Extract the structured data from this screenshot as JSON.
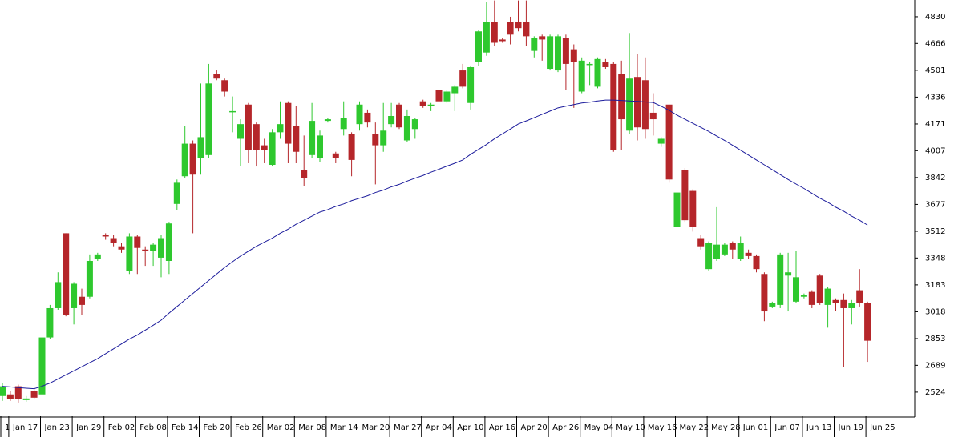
{
  "chart_data": {
    "type": "candlestick",
    "categories": [
      "1",
      "Jan 17",
      null,
      null,
      null,
      "Jan 23",
      null,
      null,
      null,
      "Jan 29",
      null,
      null,
      null,
      "Feb 02",
      null,
      null,
      null,
      "Feb 08",
      null,
      null,
      null,
      "Feb 14",
      null,
      null,
      null,
      "Feb 20",
      null,
      null,
      null,
      "Feb 26",
      null,
      null,
      null,
      "Mar 02",
      null,
      null,
      null,
      "Mar 08",
      null,
      null,
      null,
      "Mar 14",
      null,
      null,
      null,
      "Mar 20",
      null,
      null,
      null,
      "Mar 27",
      null,
      null,
      null,
      "Apr 04",
      null,
      null,
      null,
      "Apr 10",
      null,
      null,
      null,
      "Apr 16",
      null,
      null,
      null,
      "Apr 20",
      null,
      null,
      null,
      "Apr 26",
      null,
      null,
      null,
      "May 04",
      null,
      null,
      null,
      "May 10",
      null,
      null,
      null,
      "May 16",
      null,
      null,
      null,
      "May 22",
      null,
      null,
      null,
      "May 28",
      null,
      null,
      null,
      "Jun 01",
      null,
      null,
      null,
      "Jun 07",
      null,
      null,
      null,
      "Jun 13",
      null,
      null,
      null,
      "Jun 19",
      null,
      null,
      null,
      "Jun 25"
    ],
    "ohlc": [
      [
        2500,
        2580,
        2470,
        2560
      ],
      [
        2510,
        2530,
        2470,
        2480
      ],
      [
        2560,
        2570,
        2460,
        2480
      ],
      [
        2475,
        2500,
        2465,
        2485
      ],
      [
        2530,
        2550,
        2480,
        2490
      ],
      [
        2510,
        2870,
        2500,
        2860
      ],
      [
        2860,
        3060,
        2850,
        3040
      ],
      [
        3040,
        3260,
        3030,
        3200
      ],
      [
        3500,
        3500,
        2990,
        3000
      ],
      [
        3040,
        3200,
        2940,
        3190
      ],
      [
        3110,
        3160,
        3000,
        3060
      ],
      [
        3110,
        3370,
        3100,
        3330
      ],
      [
        3340,
        3380,
        3330,
        3370
      ],
      [
        3490,
        3500,
        3460,
        3480
      ],
      [
        3470,
        3490,
        3420,
        3440
      ],
      [
        3420,
        3440,
        3380,
        3400
      ],
      [
        3270,
        3500,
        3250,
        3480
      ],
      [
        3480,
        3490,
        3250,
        3410
      ],
      [
        3400,
        3420,
        3300,
        3390
      ],
      [
        3390,
        3440,
        3300,
        3430
      ],
      [
        3350,
        3490,
        3230,
        3470
      ],
      [
        3330,
        3570,
        3250,
        3560
      ],
      [
        3680,
        3830,
        3640,
        3810
      ],
      [
        3850,
        4160,
        3840,
        4050
      ],
      [
        4050,
        4070,
        3500,
        3860
      ],
      [
        3960,
        4420,
        3860,
        4090
      ],
      [
        3980,
        4540,
        3960,
        4420
      ],
      [
        4480,
        4500,
        4440,
        4450
      ],
      [
        4440,
        4450,
        4340,
        4370
      ],
      [
        4250,
        4340,
        4120,
        4250
      ],
      [
        4080,
        4200,
        3910,
        4170
      ],
      [
        4290,
        4300,
        3930,
        4010
      ],
      [
        4170,
        4180,
        3910,
        4010
      ],
      [
        4040,
        4080,
        3930,
        4010
      ],
      [
        3920,
        4140,
        3910,
        4120
      ],
      [
        4120,
        4310,
        4080,
        4170
      ],
      [
        4300,
        4310,
        3930,
        4050
      ],
      [
        4160,
        4280,
        3930,
        4000
      ],
      [
        3890,
        4100,
        3790,
        3840
      ],
      [
        3980,
        4300,
        3960,
        4190
      ],
      [
        3960,
        4130,
        3940,
        4100
      ],
      [
        4190,
        4210,
        4180,
        4200
      ],
      [
        3990,
        4000,
        3930,
        3960
      ],
      [
        4140,
        4310,
        4100,
        4210
      ],
      [
        4110,
        4120,
        3850,
        3950
      ],
      [
        4170,
        4310,
        4130,
        4290
      ],
      [
        4240,
        4260,
        4150,
        4180
      ],
      [
        4110,
        4180,
        3800,
        4040
      ],
      [
        4040,
        4300,
        4000,
        4130
      ],
      [
        4170,
        4300,
        4150,
        4220
      ],
      [
        4290,
        4300,
        4140,
        4150
      ],
      [
        4070,
        4260,
        4060,
        4220
      ],
      [
        4140,
        4210,
        4080,
        4200
      ],
      [
        4310,
        4320,
        4270,
        4280
      ],
      [
        4290,
        4300,
        4250,
        4290
      ],
      [
        4380,
        4390,
        4170,
        4310
      ],
      [
        4310,
        4380,
        4300,
        4370
      ],
      [
        4360,
        4410,
        4250,
        4400
      ],
      [
        4500,
        4540,
        4390,
        4400
      ],
      [
        4300,
        4530,
        4260,
        4520
      ],
      [
        4550,
        4750,
        4530,
        4740
      ],
      [
        4610,
        4920,
        4590,
        4800
      ],
      [
        4800,
        4930,
        4650,
        4670
      ],
      [
        4690,
        4700,
        4670,
        4680
      ],
      [
        4800,
        4830,
        4660,
        4720
      ],
      [
        4800,
        4930,
        4740,
        4760
      ],
      [
        4800,
        4930,
        4650,
        4710
      ],
      [
        4620,
        4710,
        4580,
        4700
      ],
      [
        4710,
        4720,
        4560,
        4690
      ],
      [
        4510,
        4720,
        4500,
        4710
      ],
      [
        4500,
        4720,
        4490,
        4710
      ],
      [
        4700,
        4720,
        4380,
        4540
      ],
      [
        4630,
        4660,
        4270,
        4550
      ],
      [
        4370,
        4580,
        4360,
        4560
      ],
      [
        4540,
        4550,
        4410,
        4540
      ],
      [
        4400,
        4580,
        4390,
        4570
      ],
      [
        4550,
        4570,
        4510,
        4520
      ],
      [
        4540,
        4550,
        4000,
        4010
      ],
      [
        4480,
        4560,
        4010,
        4200
      ],
      [
        4130,
        4730,
        4110,
        4450
      ],
      [
        4460,
        4600,
        4070,
        4150
      ],
      [
        4440,
        4580,
        4080,
        4140
      ],
      [
        4240,
        4360,
        4100,
        4200
      ],
      [
        4050,
        4090,
        4030,
        4080
      ],
      [
        4290,
        4290,
        3810,
        3830
      ],
      [
        3540,
        3760,
        3520,
        3750
      ],
      [
        3890,
        3900,
        3570,
        3580
      ],
      [
        3760,
        3770,
        3510,
        3540
      ],
      [
        3470,
        3490,
        3400,
        3420
      ],
      [
        3280,
        3450,
        3270,
        3440
      ],
      [
        3340,
        3660,
        3330,
        3430
      ],
      [
        3370,
        3440,
        3360,
        3430
      ],
      [
        3440,
        3450,
        3340,
        3400
      ],
      [
        3340,
        3480,
        3330,
        3440
      ],
      [
        3380,
        3400,
        3340,
        3360
      ],
      [
        3360,
        3370,
        3260,
        3280
      ],
      [
        3250,
        3260,
        2960,
        3020
      ],
      [
        3050,
        3080,
        3040,
        3070
      ],
      [
        3060,
        3380,
        3040,
        3370
      ],
      [
        3240,
        3380,
        3020,
        3260
      ],
      [
        3080,
        3390,
        3070,
        3230
      ],
      [
        3110,
        3130,
        3100,
        3120
      ],
      [
        3140,
        3150,
        3040,
        3060
      ],
      [
        3240,
        3250,
        3060,
        3070
      ],
      [
        3060,
        3170,
        2920,
        3160
      ],
      [
        3090,
        3100,
        3020,
        3070
      ],
      [
        3090,
        3130,
        2680,
        3040
      ],
      [
        3040,
        3090,
        2940,
        3070
      ],
      [
        3150,
        3280,
        3050,
        3070
      ],
      [
        3070,
        3080,
        2710,
        2840
      ]
    ],
    "ma": [
      2560,
      2556,
      2552,
      2548,
      2545,
      2560,
      2580,
      2605,
      2630,
      2655,
      2680,
      2705,
      2730,
      2760,
      2790,
      2820,
      2850,
      2875,
      2905,
      2935,
      2966,
      3010,
      3050,
      3090,
      3130,
      3170,
      3210,
      3250,
      3290,
      3325,
      3360,
      3390,
      3420,
      3445,
      3470,
      3500,
      3525,
      3555,
      3580,
      3605,
      3630,
      3645,
      3665,
      3680,
      3700,
      3715,
      3730,
      3750,
      3765,
      3785,
      3800,
      3820,
      3838,
      3855,
      3875,
      3893,
      3912,
      3930,
      3950,
      3985,
      4015,
      4045,
      4080,
      4110,
      4140,
      4171,
      4190,
      4210,
      4230,
      4250,
      4270,
      4280,
      4290,
      4300,
      4305,
      4312,
      4318,
      4318,
      4315,
      4312,
      4310,
      4306,
      4303,
      4280,
      4255,
      4225,
      4200,
      4175,
      4150,
      4125,
      4097,
      4070,
      4040,
      4010,
      3980,
      3950,
      3920,
      3890,
      3860,
      3830,
      3802,
      3775,
      3745,
      3715,
      3690,
      3660,
      3635,
      3605,
      3580,
      3550
    ],
    "up_color": "#2ec82e",
    "down_color": "#b5262a",
    "ma_color": "#1c1c9c",
    "ylim": [
      2376,
      4933
    ],
    "yticks": [
      2524,
      2689,
      2853,
      3018,
      3183,
      3348,
      3512,
      3677,
      3842,
      4007,
      4171,
      4336,
      4501,
      4666,
      4830
    ]
  }
}
